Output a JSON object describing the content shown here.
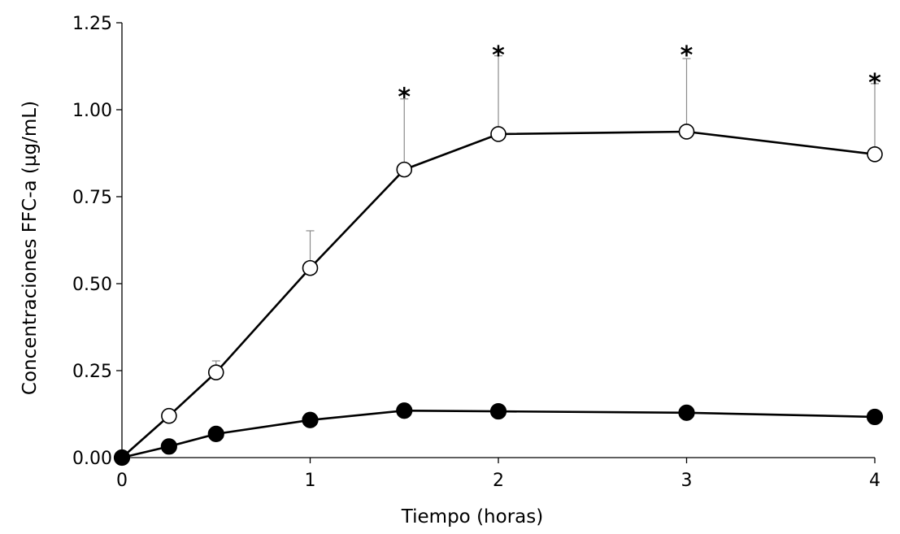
{
  "chart_data": {
    "type": "line",
    "title": "",
    "xlabel": "Tiempo (horas)",
    "ylabel": "Concentraciones FFC-a (µg/mL)",
    "xlim": [
      0,
      4
    ],
    "ylim": [
      0,
      1.25
    ],
    "x_ticks": [
      "0",
      "1",
      "2",
      "3",
      "4"
    ],
    "y_ticks": [
      "0.00",
      "0.25",
      "0.50",
      "0.75",
      "1.00",
      "1.25"
    ],
    "grid": false,
    "legend": "none",
    "x": [
      0,
      0.25,
      0.5,
      1,
      1.5,
      2,
      3,
      4
    ],
    "series": [
      {
        "marker": "open-circle",
        "color": "#000000",
        "values": [
          0.0,
          0.12,
          0.245,
          0.545,
          0.828,
          0.93,
          0.937,
          0.872
        ],
        "error_upper": [
          0.0,
          0.0,
          0.033,
          0.107,
          0.203,
          0.225,
          0.21,
          0.203
        ]
      },
      {
        "marker": "filled-circle",
        "color": "#000000",
        "values": [
          0.0,
          0.032,
          0.068,
          0.108,
          0.135,
          0.133,
          0.129,
          0.117
        ],
        "error_upper": [
          0.0,
          0.0,
          0.0,
          0.018,
          0.0,
          0.0,
          0.018,
          0.016
        ]
      }
    ],
    "annotations": [
      {
        "text": "*",
        "x": 1.5,
        "y": 1.06
      },
      {
        "text": "*",
        "x": 2,
        "y": 1.18
      },
      {
        "text": "*",
        "x": 3,
        "y": 1.18
      },
      {
        "text": "*",
        "x": 4,
        "y": 1.1
      }
    ]
  }
}
